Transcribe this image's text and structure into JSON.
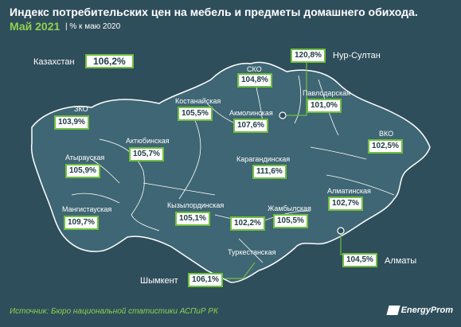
{
  "header": {
    "title": "Индекс потребительских цен на мебель и предметы домашнего обихода.",
    "subtitle": "Май 2021",
    "note": "| % к маю 2020"
  },
  "country": {
    "name": "Казахстан",
    "value": "106,2%"
  },
  "regions": {
    "sko": {
      "name": "СКО",
      "value": "104,8%"
    },
    "nursultan": {
      "name": "Нур-Султан",
      "value": "120,8%"
    },
    "kostanay": {
      "name": "Костанайская",
      "value": "105,5%"
    },
    "akmola": {
      "name": "Акмолинская",
      "value": "107,6%"
    },
    "pavlodar": {
      "name": "Павлодарская",
      "value": "101,0%"
    },
    "zko": {
      "name": "ЗКО",
      "value": "103,9%"
    },
    "aktobe": {
      "name": "Актюбинская",
      "value": "105,7%"
    },
    "vko": {
      "name": "ВКО",
      "value": "102,5%"
    },
    "atyrau": {
      "name": "Атырауская",
      "value": "105,9%"
    },
    "karaganda": {
      "name": "Карагандинская",
      "value": "111,6%"
    },
    "mangistau": {
      "name": "Мангистауская",
      "value": "109,7%"
    },
    "almaty_reg": {
      "name": "Алматинская",
      "value": "102,7%"
    },
    "kyzylorda": {
      "name": "Кызылординская",
      "value": "105,1%"
    },
    "zhambyl": {
      "name": "Жамбылская",
      "value": "105,5%"
    },
    "zhambyl_extra": {
      "value": "102,2%"
    },
    "turkestan": {
      "name": "Туркестанская"
    },
    "almaty_city": {
      "name": "Алматы",
      "value": "104,5%"
    },
    "shymkent": {
      "name": "Шымкент",
      "value": "106,1%"
    }
  },
  "footer": {
    "source": "Источник: Бюро национальной  статистики АСПиР РК",
    "logo": "EnergyProm"
  },
  "colors": {
    "background": "#2f4e5b",
    "map": "#3f6674",
    "accent": "#6fbf3f",
    "subtitle": "#8fd14f"
  }
}
